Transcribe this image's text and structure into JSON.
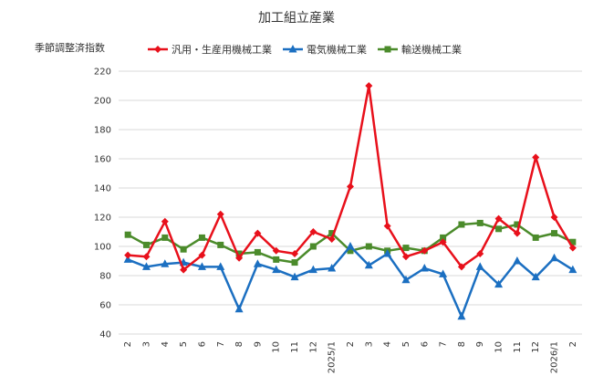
{
  "chart_data": {
    "type": "line",
    "title": "加工組立産業",
    "ylabel": "季節調整済指数",
    "xlabel": "",
    "ylim": [
      40,
      220
    ],
    "yticks": [
      40,
      60,
      80,
      100,
      120,
      140,
      160,
      180,
      200,
      220
    ],
    "grid": true,
    "legend_position": "top",
    "categories": [
      "2",
      "3",
      "4",
      "5",
      "6",
      "7",
      "8",
      "9",
      "10",
      "11",
      "12",
      "2025/1",
      "2",
      "3",
      "4",
      "5",
      "6",
      "7",
      "8",
      "9",
      "10",
      "11",
      "12",
      "2026/1",
      "2"
    ],
    "series": [
      {
        "name": "汎用・生産用機械工業",
        "color": "#e8101b",
        "marker": "diamond",
        "values": [
          94,
          93,
          117,
          84,
          94,
          122,
          92,
          109,
          97,
          95,
          110,
          105,
          141,
          210,
          114,
          93,
          97,
          103,
          86,
          95,
          119,
          109,
          161,
          120,
          99
        ]
      },
      {
        "name": "電気機械工業",
        "color": "#1b6fc1",
        "marker": "triangle",
        "values": [
          91,
          86,
          88,
          89,
          86,
          86,
          57,
          88,
          84,
          79,
          84,
          85,
          100,
          87,
          95,
          77,
          85,
          81,
          52,
          86,
          74,
          90,
          79,
          92,
          84
        ]
      },
      {
        "name": "輸送機械工業",
        "color": "#4b8b2b",
        "marker": "square",
        "values": [
          108,
          101,
          106,
          98,
          106,
          101,
          95,
          96,
          91,
          89,
          100,
          109,
          97,
          100,
          97,
          99,
          97,
          106,
          115,
          116,
          112,
          115,
          106,
          109,
          103
        ]
      }
    ]
  }
}
